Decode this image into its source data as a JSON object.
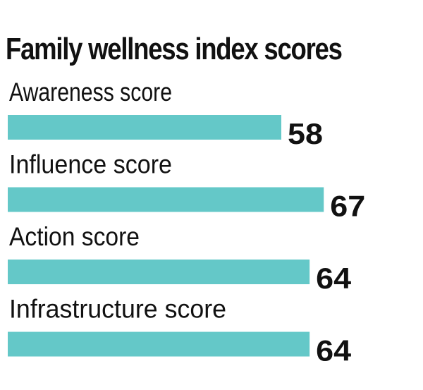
{
  "chart_data": {
    "type": "bar",
    "orientation": "horizontal",
    "title": "Family wellness index scores",
    "categories": [
      "Awareness score",
      "Influence score",
      "Action score",
      "Infrastructure score"
    ],
    "values": [
      58,
      67,
      64,
      64
    ],
    "bar_color": "#64c8c8",
    "xlabel": "",
    "ylabel": "",
    "grid": false,
    "legend": "none"
  }
}
